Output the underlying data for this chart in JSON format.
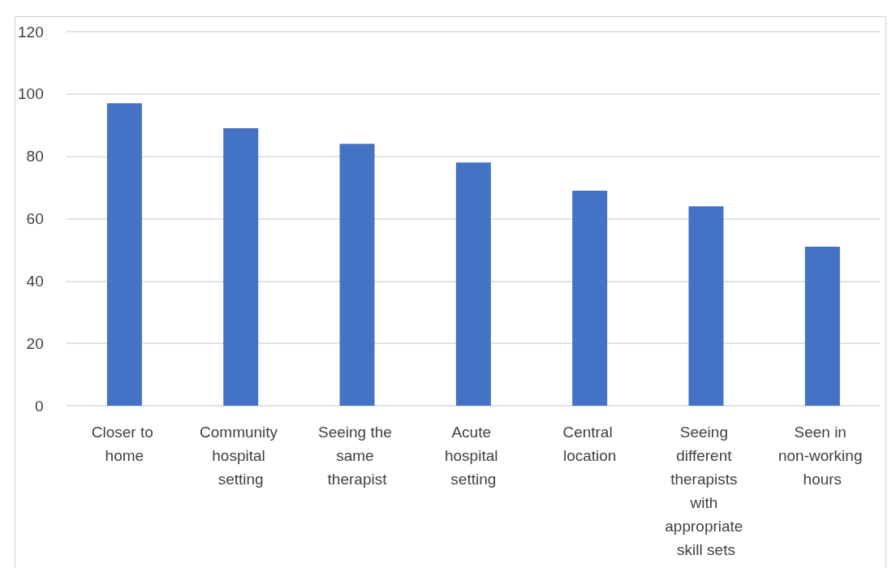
{
  "chart_data": {
    "type": "bar",
    "categories": [
      "Closer to home",
      "Community hospital setting",
      "Seeing the same therapist",
      "Acute hospital setting",
      "Central location",
      "Seeing different therapists with appropriate skill sets",
      "Seen in non-working hours"
    ],
    "values": [
      97,
      89,
      84,
      78,
      69,
      64,
      51
    ],
    "color": "#4472c4",
    "ylim": [
      0,
      120
    ],
    "yticks": [
      0,
      20,
      40,
      60,
      80,
      100,
      120
    ],
    "grid": "y"
  }
}
